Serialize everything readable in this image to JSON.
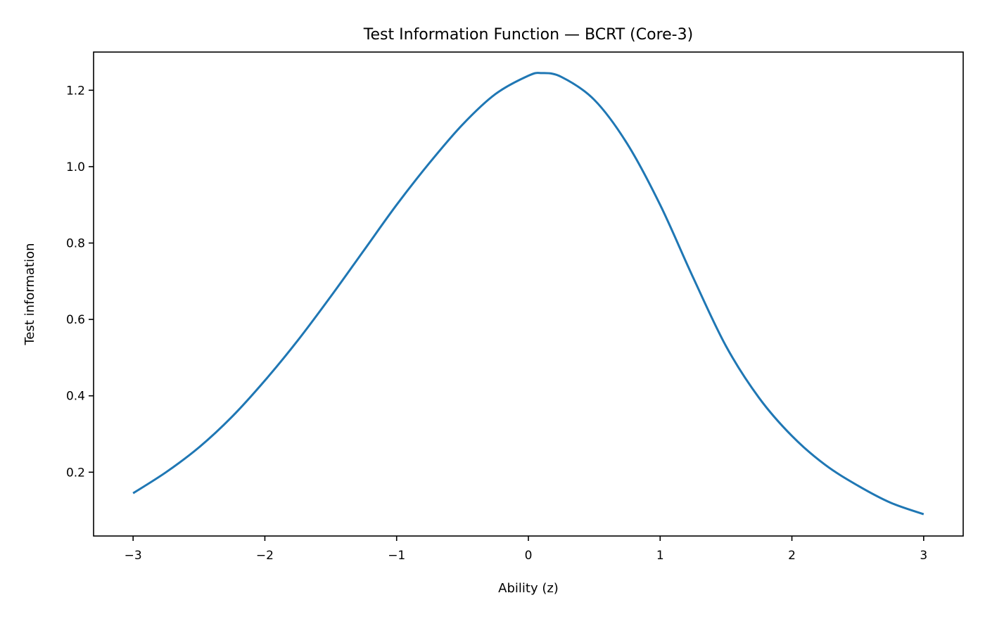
{
  "chart_data": {
    "type": "line",
    "title": "Test Information Function — BCRT (Core-3)",
    "xlabel": "Ability (z)",
    "ylabel": "Test information",
    "xlim": [
      -3.3,
      3.3
    ],
    "ylim": [
      0.033,
      1.3
    ],
    "grid": false,
    "x_ticks": [
      -3,
      -2,
      -1,
      0,
      1,
      2,
      3
    ],
    "x_tick_labels": [
      "−3",
      "−2",
      "−1",
      "0",
      "1",
      "2",
      "3"
    ],
    "y_ticks": [
      0.2,
      0.4,
      0.6,
      0.8,
      1.0,
      1.2
    ],
    "y_tick_labels": [
      "0.2",
      "0.4",
      "0.6",
      "0.8",
      "1.0",
      "1.2"
    ],
    "series": [
      {
        "color": "#1f77b4",
        "x": [
          -3.0,
          -2.75,
          -2.5,
          -2.25,
          -2.0,
          -1.75,
          -1.5,
          -1.25,
          -1.0,
          -0.75,
          -0.5,
          -0.25,
          0.0,
          0.1,
          0.25,
          0.5,
          0.75,
          1.0,
          1.25,
          1.5,
          1.75,
          2.0,
          2.25,
          2.5,
          2.75,
          3.0
        ],
        "y": [
          0.145,
          0.2,
          0.265,
          0.345,
          0.44,
          0.545,
          0.66,
          0.78,
          0.9,
          1.01,
          1.11,
          1.19,
          1.238,
          1.245,
          1.235,
          1.175,
          1.06,
          0.9,
          0.71,
          0.53,
          0.395,
          0.295,
          0.22,
          0.165,
          0.12,
          0.09
        ]
      }
    ]
  }
}
